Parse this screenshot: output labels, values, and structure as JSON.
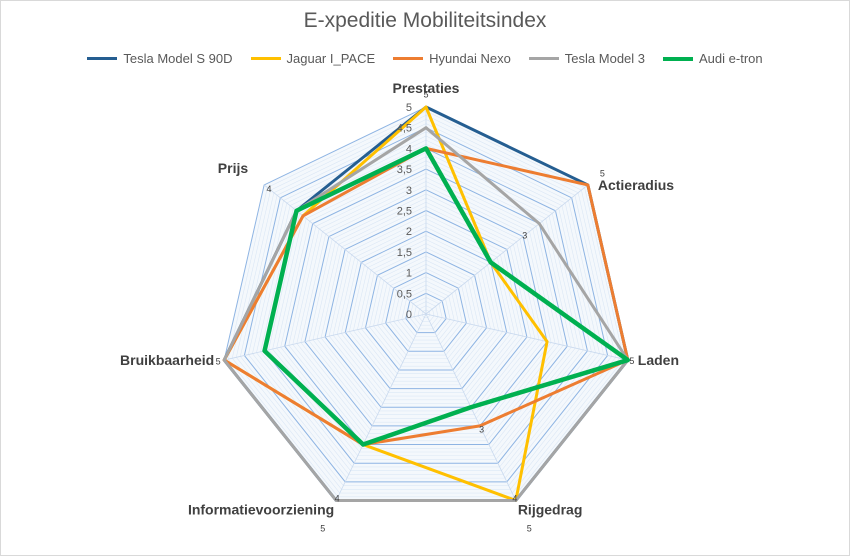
{
  "chart_data": {
    "type": "radar",
    "title": "E-xpeditie Mobiliteitsindex",
    "axes": [
      "Prestaties",
      "Actieradius",
      "Laden",
      "Rijgedrag",
      "Informatievoorziening",
      "Bruikbaarheid",
      "Prijs"
    ],
    "ticks": [
      "0",
      "0,5",
      "1",
      "1,5",
      "2",
      "2,5",
      "3",
      "3,5",
      "4",
      "4,5",
      "5"
    ],
    "rlim": [
      0,
      5
    ],
    "grid": true,
    "legend_position": "top",
    "series": [
      {
        "name": "Tesla Model S 90D",
        "color": "#255e91",
        "values": [
          5,
          5,
          5,
          5,
          5,
          5,
          4
        ]
      },
      {
        "name": "Jaguar I_PACE",
        "color": "#ffc000",
        "values": [
          5,
          2,
          3,
          5,
          3.5,
          5,
          3.8
        ]
      },
      {
        "name": "Hyundai Nexo",
        "color": "#ed7d31",
        "values": [
          4,
          5,
          5,
          3,
          3.5,
          5,
          3.8
        ]
      },
      {
        "name": "Tesla Model 3",
        "color": "#a5a5a5",
        "values": [
          4.5,
          3.5,
          5,
          5,
          5,
          5,
          4
        ]
      },
      {
        "name": "Audi e-tron",
        "color": "#00b050",
        "values": [
          4,
          2,
          5,
          2.5,
          3.5,
          4,
          4
        ]
      }
    ],
    "data_labels": [
      {
        "text": "5",
        "axis": 0,
        "value": 5.3
      },
      {
        "text": "5",
        "axis": 1,
        "value": 5.45
      },
      {
        "text": "3",
        "axis": 1,
        "value": 3.05
      },
      {
        "text": "5",
        "axis": 2,
        "value": 5.1
      },
      {
        "text": "5",
        "axis": 3,
        "value": 5.75
      },
      {
        "text": "3",
        "axis": 3,
        "value": 3.1
      },
      {
        "text": "4",
        "axis": 3,
        "value": 4.95
      },
      {
        "text": "5",
        "axis": 4,
        "value": 5.75
      },
      {
        "text": "4",
        "axis": 4,
        "value": 4.95
      },
      {
        "text": "5",
        "axis": 5,
        "value": 5.15
      },
      {
        "text": "4",
        "axis": 6,
        "value": 4.85
      }
    ]
  }
}
